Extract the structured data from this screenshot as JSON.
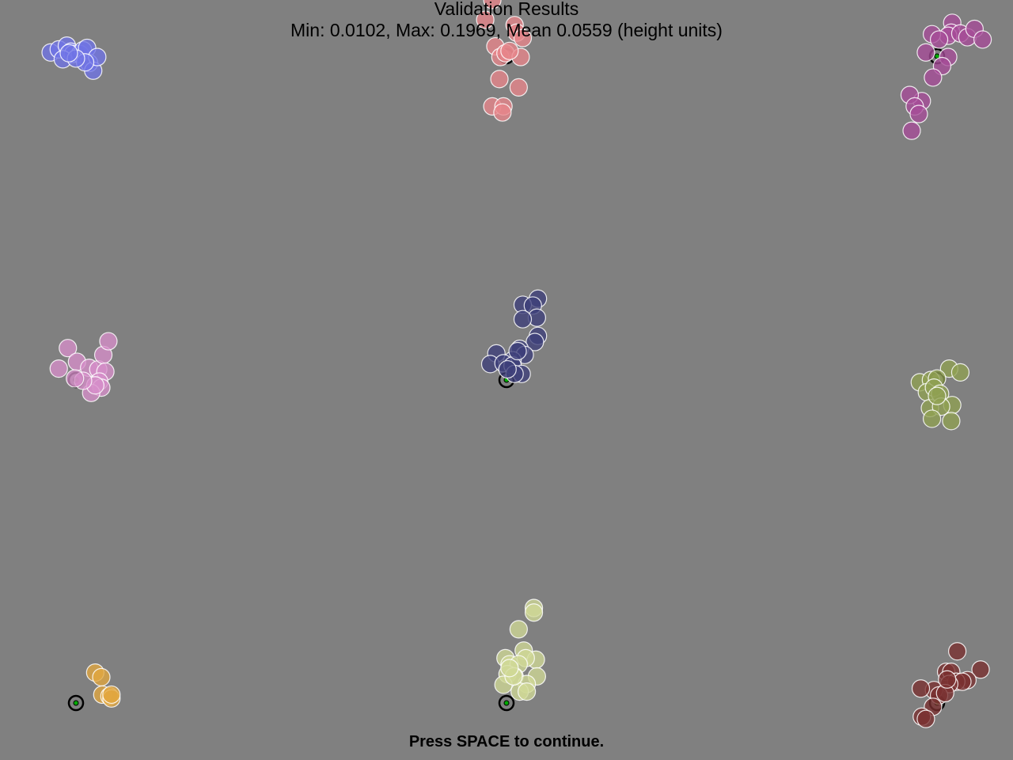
{
  "header": {
    "title": "Validation Results",
    "stats": "Min: 0.0102, Max: 0.1969, Mean 0.0559 (height units)"
  },
  "footer": {
    "instruction": "Press SPACE to continue."
  },
  "colors": {
    "background": "#808080",
    "target_ring": "#000000",
    "target_center": "#00aa00",
    "sample_stroke": "#ffffff"
  },
  "targets": [
    {
      "id": "top-left",
      "color": "#6f73e6",
      "target": [
        0.075,
        0.069
      ],
      "samples": [
        [
          0.05,
          0.069
        ],
        [
          0.058,
          0.065
        ],
        [
          0.066,
          0.06
        ],
        [
          0.07,
          0.068
        ],
        [
          0.072,
          0.071
        ],
        [
          0.079,
          0.071
        ],
        [
          0.082,
          0.066
        ],
        [
          0.086,
          0.063
        ],
        [
          0.088,
          0.083
        ],
        [
          0.092,
          0.093
        ],
        [
          0.096,
          0.075
        ],
        [
          0.084,
          0.082
        ],
        [
          0.062,
          0.078
        ],
        [
          0.075,
          0.077
        ],
        [
          0.068,
          0.07
        ]
      ]
    },
    {
      "id": "top-center",
      "color": "#e8858a",
      "target": [
        0.5,
        0.074
      ],
      "samples": [
        [
          0.479,
          0.026
        ],
        [
          0.486,
          0.0
        ],
        [
          0.508,
          0.033
        ],
        [
          0.51,
          0.043
        ],
        [
          0.516,
          0.05
        ],
        [
          0.489,
          0.061
        ],
        [
          0.494,
          0.075
        ],
        [
          0.499,
          0.07
        ],
        [
          0.514,
          0.075
        ],
        [
          0.512,
          0.115
        ],
        [
          0.493,
          0.104
        ],
        [
          0.486,
          0.14
        ],
        [
          0.497,
          0.14
        ],
        [
          0.496,
          0.148
        ],
        [
          0.503,
          0.067
        ]
      ]
    },
    {
      "id": "top-right",
      "color": "#a64c99",
      "target": [
        0.925,
        0.074
      ],
      "samples": [
        [
          0.94,
          0.03
        ],
        [
          0.939,
          0.043
        ],
        [
          0.936,
          0.047
        ],
        [
          0.948,
          0.044
        ],
        [
          0.955,
          0.049
        ],
        [
          0.962,
          0.038
        ],
        [
          0.97,
          0.052
        ],
        [
          0.936,
          0.075
        ],
        [
          0.92,
          0.045
        ],
        [
          0.914,
          0.069
        ],
        [
          0.93,
          0.087
        ],
        [
          0.921,
          0.102
        ],
        [
          0.91,
          0.133
        ],
        [
          0.898,
          0.125
        ],
        [
          0.903,
          0.14
        ],
        [
          0.907,
          0.15
        ],
        [
          0.9,
          0.172
        ],
        [
          0.927,
          0.052
        ]
      ]
    },
    {
      "id": "mid-left",
      "color": "#d68ec9",
      "target": [
        0.075,
        0.5
      ],
      "samples": [
        [
          0.067,
          0.458
        ],
        [
          0.058,
          0.485
        ],
        [
          0.076,
          0.476
        ],
        [
          0.088,
          0.484
        ],
        [
          0.097,
          0.486
        ],
        [
          0.102,
          0.467
        ],
        [
          0.107,
          0.449
        ],
        [
          0.104,
          0.489
        ],
        [
          0.098,
          0.502
        ],
        [
          0.1,
          0.51
        ],
        [
          0.09,
          0.517
        ],
        [
          0.094,
          0.507
        ],
        [
          0.082,
          0.501
        ],
        [
          0.074,
          0.498
        ]
      ]
    },
    {
      "id": "center",
      "color": "#3e3f7a",
      "target": [
        0.5,
        0.5
      ],
      "samples": [
        [
          0.531,
          0.393
        ],
        [
          0.516,
          0.401
        ],
        [
          0.526,
          0.402
        ],
        [
          0.53,
          0.418
        ],
        [
          0.516,
          0.42
        ],
        [
          0.531,
          0.442
        ],
        [
          0.528,
          0.45
        ],
        [
          0.513,
          0.459
        ],
        [
          0.518,
          0.467
        ],
        [
          0.506,
          0.474
        ],
        [
          0.49,
          0.465
        ],
        [
          0.484,
          0.479
        ],
        [
          0.497,
          0.478
        ],
        [
          0.506,
          0.481
        ],
        [
          0.515,
          0.492
        ],
        [
          0.508,
          0.492
        ],
        [
          0.501,
          0.486
        ],
        [
          0.511,
          0.462
        ]
      ]
    },
    {
      "id": "mid-right",
      "color": "#8fa052",
      "target": [
        0.925,
        0.5
      ],
      "samples": [
        [
          0.937,
          0.485
        ],
        [
          0.948,
          0.49
        ],
        [
          0.908,
          0.503
        ],
        [
          0.919,
          0.5
        ],
        [
          0.925,
          0.498
        ],
        [
          0.915,
          0.516
        ],
        [
          0.922,
          0.51
        ],
        [
          0.928,
          0.518
        ],
        [
          0.94,
          0.533
        ],
        [
          0.918,
          0.537
        ],
        [
          0.929,
          0.535
        ],
        [
          0.92,
          0.551
        ],
        [
          0.939,
          0.554
        ],
        [
          0.925,
          0.521
        ]
      ]
    },
    {
      "id": "bottom-left",
      "color": "#e2a73f",
      "target": [
        0.075,
        0.925
      ],
      "samples": [
        [
          0.094,
          0.885
        ],
        [
          0.1,
          0.891
        ],
        [
          0.101,
          0.914
        ],
        [
          0.108,
          0.916
        ],
        [
          0.11,
          0.919
        ],
        [
          0.11,
          0.914
        ]
      ]
    },
    {
      "id": "bottom-center",
      "color": "#cfd996",
      "target": [
        0.5,
        0.925
      ],
      "samples": [
        [
          0.527,
          0.8
        ],
        [
          0.527,
          0.806
        ],
        [
          0.512,
          0.828
        ],
        [
          0.517,
          0.856
        ],
        [
          0.529,
          0.868
        ],
        [
          0.519,
          0.866
        ],
        [
          0.499,
          0.866
        ],
        [
          0.503,
          0.874
        ],
        [
          0.512,
          0.874
        ],
        [
          0.501,
          0.887
        ],
        [
          0.508,
          0.89
        ],
        [
          0.53,
          0.89
        ],
        [
          0.497,
          0.901
        ],
        [
          0.52,
          0.9
        ],
        [
          0.513,
          0.91
        ],
        [
          0.52,
          0.91
        ],
        [
          0.507,
          0.89
        ],
        [
          0.503,
          0.879
        ]
      ]
    },
    {
      "id": "bottom-right",
      "color": "#7a2f2f",
      "target": [
        0.925,
        0.925
      ],
      "samples": [
        [
          0.945,
          0.857
        ],
        [
          0.934,
          0.884
        ],
        [
          0.939,
          0.884
        ],
        [
          0.968,
          0.881
        ],
        [
          0.955,
          0.895
        ],
        [
          0.944,
          0.897
        ],
        [
          0.95,
          0.897
        ],
        [
          0.937,
          0.9
        ],
        [
          0.922,
          0.908
        ],
        [
          0.909,
          0.906
        ],
        [
          0.927,
          0.915
        ],
        [
          0.933,
          0.912
        ],
        [
          0.921,
          0.93
        ],
        [
          0.91,
          0.943
        ],
        [
          0.914,
          0.946
        ],
        [
          0.935,
          0.894
        ]
      ]
    }
  ]
}
